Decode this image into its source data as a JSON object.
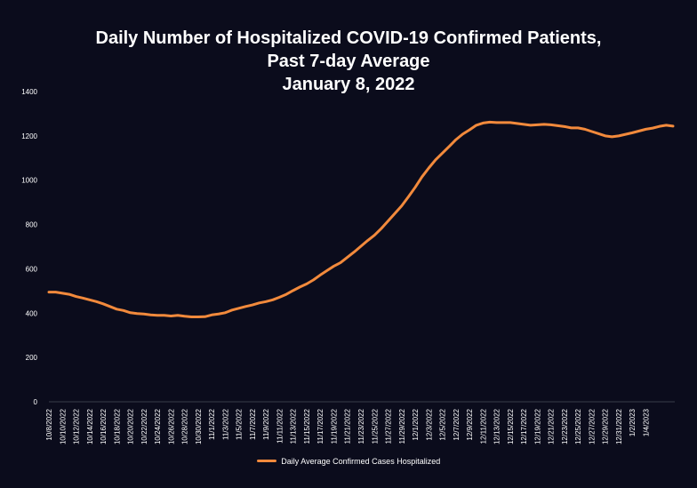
{
  "chart_data": {
    "type": "line",
    "title_lines": [
      "Daily Number of Hospitalized COVID-19 Confirmed Patients,",
      "Past 7-day Average",
      "January 8, 2022"
    ],
    "xlabel": "",
    "ylabel": "",
    "ylim": [
      0,
      1400
    ],
    "yticks": [
      0,
      200,
      400,
      600,
      800,
      1000,
      1200,
      1400
    ],
    "x_tick_labels": [
      "10/8/2022",
      "10/10/2022",
      "10/12/2022",
      "10/14/2022",
      "10/16/2022",
      "10/18/2022",
      "10/20/2022",
      "10/22/2022",
      "10/24/2022",
      "10/26/2022",
      "10/28/2022",
      "10/30/2022",
      "11/1/2022",
      "11/3/2022",
      "11/5/2022",
      "11/7/2022",
      "11/9/2022",
      "11/11/2022",
      "11/13/2022",
      "11/15/2022",
      "11/17/2022",
      "11/19/2022",
      "11/21/2022",
      "11/23/2022",
      "11/25/2022",
      "11/27/2022",
      "11/29/2022",
      "12/1/2022",
      "12/3/2022",
      "12/5/2022",
      "12/7/2022",
      "12/9/2022",
      "12/11/2022",
      "12/13/2022",
      "12/15/2022",
      "12/17/2022",
      "12/19/2022",
      "12/21/2022",
      "12/23/2022",
      "12/25/2022",
      "12/27/2022",
      "12/29/2022",
      "12/31/2022",
      "1/2/2023",
      "1/4/2023"
    ],
    "grid": false,
    "legend_position": "bottom",
    "series": [
      {
        "name": "Daily Average Confirmed Cases Hospitalized",
        "color": "#f28a3c",
        "x_start": "10/8/2022",
        "values": [
          495,
          495,
          490,
          485,
          475,
          468,
          460,
          452,
          442,
          430,
          418,
          412,
          402,
          398,
          396,
          392,
          390,
          390,
          387,
          390,
          386,
          383,
          383,
          384,
          392,
          396,
          402,
          414,
          422,
          430,
          437,
          446,
          452,
          460,
          472,
          485,
          502,
          518,
          532,
          550,
          572,
          592,
          612,
          628,
          652,
          676,
          702,
          728,
          752,
          782,
          816,
          850,
          884,
          925,
          968,
          1015,
          1055,
          1092,
          1122,
          1152,
          1183,
          1208,
          1227,
          1248,
          1258,
          1262,
          1260,
          1260,
          1260,
          1256,
          1252,
          1248,
          1250,
          1252,
          1250,
          1246,
          1242,
          1236,
          1236,
          1230,
          1220,
          1210,
          1200,
          1196,
          1200,
          1207,
          1214,
          1222,
          1230,
          1235,
          1243,
          1248,
          1244
        ]
      }
    ]
  }
}
